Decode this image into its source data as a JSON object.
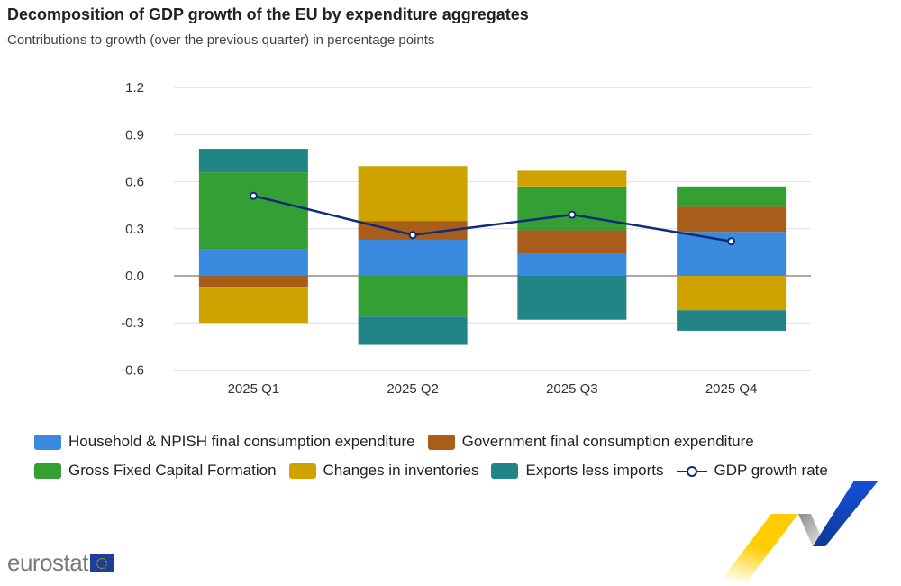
{
  "title": "Decomposition of GDP growth of the EU by expenditure aggregates",
  "subtitle": "Contributions to growth (over the previous quarter) in percentage points",
  "logo_text": "eurostat",
  "chart_data": {
    "type": "bar",
    "stacked": true,
    "categories": [
      "2025 Q1",
      "2025 Q2",
      "2025 Q3",
      "2025 Q4"
    ],
    "ylim": [
      -0.6,
      1.2
    ],
    "yticks": [
      "1.2",
      "0.9",
      "0.6",
      "0.3",
      "0.0",
      "-0.3",
      "-0.6"
    ],
    "ytick_values": [
      1.2,
      0.9,
      0.6,
      0.3,
      0.0,
      -0.3,
      -0.6
    ],
    "grid": true,
    "legend_position": "bottom",
    "series": [
      {
        "name": "Household & NPISH final consumption expenditure",
        "color": "#3a8ae0",
        "values": [
          0.17,
          0.23,
          0.14,
          0.28
        ]
      },
      {
        "name": "Government final consumption expenditure",
        "color": "#a85e1a",
        "values": [
          -0.07,
          0.12,
          0.15,
          0.16
        ]
      },
      {
        "name": "Gross Fixed Capital Formation",
        "color": "#34a034",
        "values": [
          0.49,
          -0.26,
          0.28,
          0.13
        ]
      },
      {
        "name": "Changes in inventories",
        "color": "#cea300",
        "values": [
          -0.23,
          0.35,
          0.1,
          -0.22
        ]
      },
      {
        "name": "Exports less imports",
        "color": "#218585",
        "values": [
          0.15,
          -0.18,
          -0.28,
          -0.13
        ]
      }
    ],
    "line": {
      "name": "GDP growth rate",
      "color": "#0e2c7a",
      "type": "line",
      "values": [
        0.51,
        0.26,
        0.39,
        0.22
      ]
    }
  }
}
